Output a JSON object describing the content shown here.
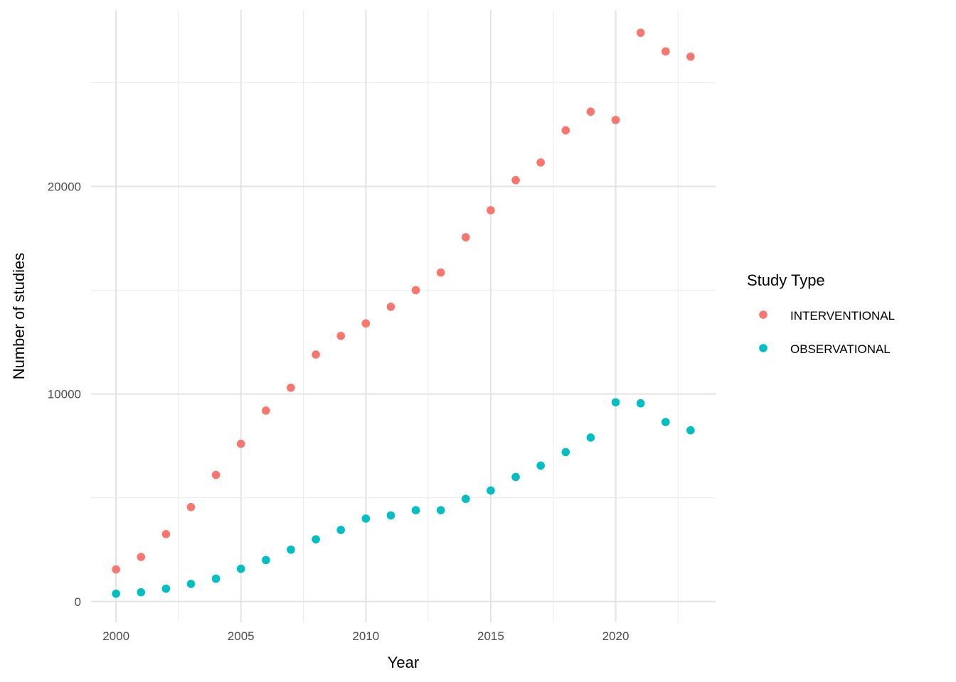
{
  "chart_data": {
    "type": "scatter",
    "xlabel": "Year",
    "ylabel": "Number of studies",
    "xlim": [
      1999,
      2024
    ],
    "ylim": [
      -1000,
      28500
    ],
    "x_ticks": [
      2000,
      2005,
      2010,
      2015,
      2020
    ],
    "x_tick_labels": [
      "2000",
      "2005",
      "2010",
      "2015",
      "2020"
    ],
    "y_ticks": [
      0,
      10000,
      20000
    ],
    "y_tick_labels": [
      "0",
      "10000",
      "20000"
    ],
    "grid": true,
    "legend": {
      "title": "Study Type",
      "position": "right"
    },
    "x": [
      2000,
      2001,
      2002,
      2003,
      2004,
      2005,
      2006,
      2007,
      2008,
      2009,
      2010,
      2011,
      2012,
      2013,
      2014,
      2015,
      2016,
      2017,
      2018,
      2019,
      2020,
      2021,
      2022,
      2023
    ],
    "series": [
      {
        "name": "INTERVENTIONAL",
        "color": "#F8766D",
        "values": [
          1550,
          2150,
          3250,
          4550,
          6100,
          7600,
          9200,
          10300,
          11900,
          12800,
          13400,
          14200,
          15000,
          15850,
          17550,
          18850,
          20300,
          21150,
          22700,
          23600,
          23200,
          27400,
          26500,
          26250
        ]
      },
      {
        "name": "OBSERVATIONAL",
        "color": "#00BFC4",
        "values": [
          380,
          450,
          620,
          850,
          1100,
          1580,
          2000,
          2500,
          3000,
          3450,
          4000,
          4150,
          4400,
          4400,
          4950,
          5350,
          6000,
          6550,
          7200,
          7900,
          9600,
          9550,
          8650,
          8250
        ]
      }
    ]
  }
}
